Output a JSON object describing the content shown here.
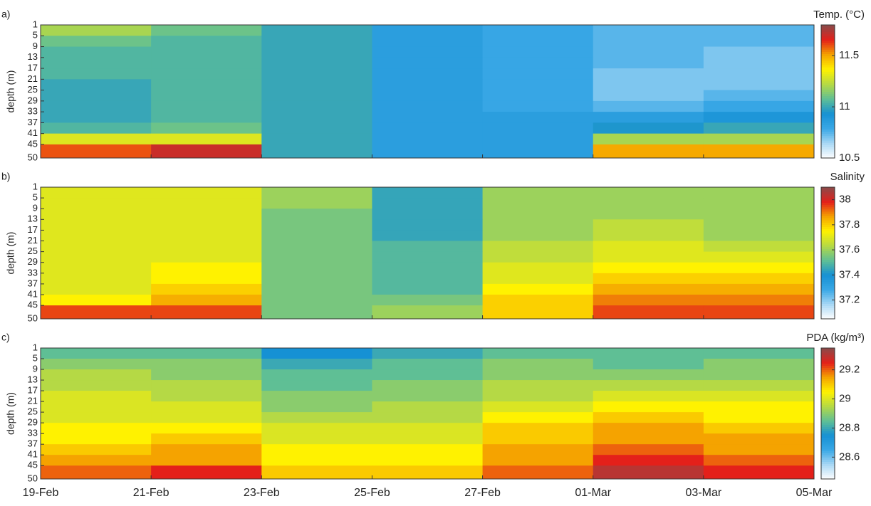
{
  "chart_data": [
    {
      "type": "heatmap",
      "panel_label": "a)",
      "colorbar_title": "Temp. (°C)",
      "ylabel": "depth (m)",
      "x": [
        "19-Feb",
        "21-Feb",
        "23-Feb",
        "25-Feb",
        "27-Feb",
        "01-Mar",
        "03-Mar",
        "05-Mar"
      ],
      "xtick_labels": false,
      "y": [
        1,
        5,
        9,
        13,
        17,
        21,
        25,
        29,
        33,
        37,
        41,
        45,
        50
      ],
      "ylim": [
        1,
        50
      ],
      "yticks": [
        1,
        5,
        9,
        13,
        17,
        21,
        25,
        29,
        33,
        37,
        41,
        45,
        50
      ],
      "clim": [
        10.5,
        11.8
      ],
      "cticks": [
        10.5,
        11,
        11.5
      ],
      "colormap": [
        "#ffffff",
        "#a9d8f5",
        "#3aa8e6",
        "#1691d4",
        "#5fbf95",
        "#b5d945",
        "#fff200",
        "#f5a300",
        "#e4201a",
        "#8b4a4a"
      ],
      "background": "#c8c8c8",
      "values": [
        [
          11.2,
          11.1,
          11.0,
          10.85,
          10.8,
          10.75,
          10.75
        ],
        [
          11.1,
          11.05,
          11.0,
          10.85,
          10.8,
          10.75,
          10.75
        ],
        [
          11.05,
          11.05,
          11.0,
          10.85,
          10.8,
          10.75,
          10.7
        ],
        [
          11.05,
          11.05,
          11.0,
          10.85,
          10.8,
          10.75,
          10.7
        ],
        [
          11.05,
          11.05,
          11.0,
          10.85,
          10.8,
          10.7,
          10.7
        ],
        [
          11.0,
          11.05,
          11.0,
          10.85,
          10.8,
          10.7,
          10.7
        ],
        [
          11.0,
          11.05,
          11.0,
          10.85,
          10.8,
          10.7,
          10.75
        ],
        [
          11.0,
          11.05,
          11.0,
          10.85,
          10.8,
          10.75,
          10.8
        ],
        [
          11.0,
          11.05,
          11.0,
          10.85,
          10.85,
          10.85,
          10.9
        ],
        [
          11.05,
          11.1,
          11.0,
          10.85,
          10.85,
          10.95,
          11.0
        ],
        [
          11.3,
          11.3,
          11.0,
          10.85,
          10.85,
          11.2,
          11.2
        ],
        [
          11.6,
          11.7,
          11.0,
          10.85,
          10.85,
          11.5,
          11.5
        ]
      ]
    },
    {
      "type": "heatmap",
      "panel_label": "b)",
      "colorbar_title": "Salinity",
      "ylabel": "depth (m)",
      "x": [
        "19-Feb",
        "21-Feb",
        "23-Feb",
        "25-Feb",
        "27-Feb",
        "01-Mar",
        "03-Mar",
        "05-Mar"
      ],
      "xtick_labels": false,
      "y": [
        1,
        5,
        9,
        13,
        17,
        21,
        25,
        29,
        33,
        37,
        41,
        45,
        50
      ],
      "ylim": [
        1,
        50
      ],
      "yticks": [
        1,
        5,
        9,
        13,
        17,
        21,
        25,
        29,
        33,
        37,
        41,
        45,
        50
      ],
      "clim": [
        37.05,
        38.1
      ],
      "cticks": [
        37.2,
        37.4,
        37.6,
        37.8,
        38
      ],
      "colormap": [
        "#ffffff",
        "#a9d8f5",
        "#3aa8e6",
        "#1691d4",
        "#5fbf95",
        "#b5d945",
        "#fff200",
        "#f5a300",
        "#e4201a",
        "#8b4a4a"
      ],
      "background": "#c8c8c8",
      "values": [
        [
          37.7,
          37.7,
          37.6,
          37.45,
          37.6,
          37.6,
          37.6
        ],
        [
          37.7,
          37.7,
          37.6,
          37.45,
          37.6,
          37.6,
          37.6
        ],
        [
          37.7,
          37.7,
          37.55,
          37.45,
          37.6,
          37.6,
          37.6
        ],
        [
          37.7,
          37.7,
          37.55,
          37.45,
          37.6,
          37.65,
          37.6
        ],
        [
          37.7,
          37.7,
          37.55,
          37.45,
          37.6,
          37.65,
          37.6
        ],
        [
          37.7,
          37.7,
          37.55,
          37.5,
          37.65,
          37.7,
          37.65
        ],
        [
          37.7,
          37.7,
          37.55,
          37.5,
          37.65,
          37.7,
          37.7
        ],
        [
          37.7,
          37.75,
          37.55,
          37.5,
          37.7,
          37.75,
          37.75
        ],
        [
          37.7,
          37.75,
          37.55,
          37.5,
          37.7,
          37.8,
          37.8
        ],
        [
          37.7,
          37.8,
          37.55,
          37.5,
          37.75,
          37.85,
          37.85
        ],
        [
          37.75,
          37.85,
          37.55,
          37.55,
          37.8,
          37.9,
          37.9
        ],
        [
          37.95,
          37.95,
          37.55,
          37.6,
          37.8,
          37.95,
          37.95
        ]
      ]
    },
    {
      "type": "heatmap",
      "panel_label": "c)",
      "colorbar_title": "PDA (kg/m³)",
      "ylabel": "depth (m)",
      "x": [
        "19-Feb",
        "21-Feb",
        "23-Feb",
        "25-Feb",
        "27-Feb",
        "01-Mar",
        "03-Mar",
        "05-Mar"
      ],
      "xtick_labels": true,
      "y": [
        1,
        5,
        9,
        13,
        17,
        21,
        25,
        29,
        33,
        37,
        41,
        45,
        50
      ],
      "ylim": [
        1,
        50
      ],
      "yticks": [
        1,
        5,
        9,
        13,
        17,
        21,
        25,
        29,
        33,
        37,
        41,
        45,
        50
      ],
      "clim": [
        28.45,
        29.35
      ],
      "cticks": [
        28.6,
        28.8,
        29,
        29.2
      ],
      "colormap": [
        "#ffffff",
        "#a9d8f5",
        "#3aa8e6",
        "#1691d4",
        "#5fbf95",
        "#b5d945",
        "#fff200",
        "#f5a300",
        "#e4201a",
        "#8b4a4a"
      ],
      "background": "#c8c8c8",
      "values": [
        [
          28.85,
          28.85,
          28.75,
          28.8,
          28.85,
          28.85,
          28.85
        ],
        [
          28.9,
          28.9,
          28.8,
          28.85,
          28.9,
          28.85,
          28.9
        ],
        [
          28.95,
          28.9,
          28.85,
          28.85,
          28.9,
          28.9,
          28.9
        ],
        [
          28.95,
          28.95,
          28.85,
          28.9,
          28.95,
          28.95,
          28.95
        ],
        [
          29.0,
          28.95,
          28.9,
          28.9,
          28.95,
          29.0,
          29.0
        ],
        [
          29.0,
          29.0,
          28.9,
          28.95,
          29.0,
          29.05,
          29.05
        ],
        [
          29.0,
          29.0,
          28.95,
          28.95,
          29.05,
          29.1,
          29.05
        ],
        [
          29.05,
          29.05,
          29.0,
          29.0,
          29.1,
          29.15,
          29.1
        ],
        [
          29.05,
          29.1,
          29.0,
          29.0,
          29.1,
          29.15,
          29.15
        ],
        [
          29.1,
          29.15,
          29.05,
          29.05,
          29.15,
          29.2,
          29.15
        ],
        [
          29.15,
          29.15,
          29.05,
          29.05,
          29.15,
          29.25,
          29.2
        ],
        [
          29.2,
          29.25,
          29.1,
          29.1,
          29.2,
          29.3,
          29.25
        ]
      ]
    }
  ]
}
